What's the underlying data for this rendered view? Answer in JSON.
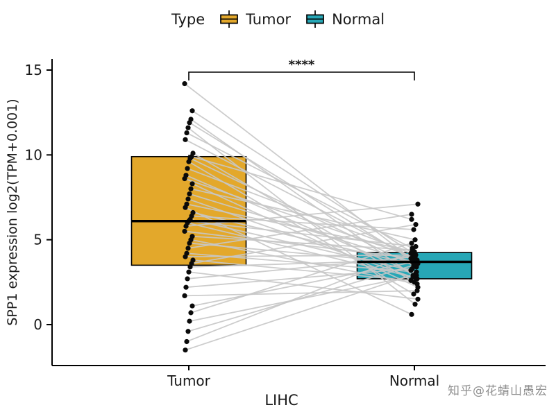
{
  "legend": {
    "title": "Type",
    "items": [
      {
        "label": "Tumor",
        "color": "#E3A82B"
      },
      {
        "label": "Normal",
        "color": "#27A7B6"
      }
    ]
  },
  "watermark": "知乎@花蜻山愚宏",
  "chart_data": {
    "type": "paired-boxplot",
    "title": "",
    "xlabel": "LIHC",
    "ylabel": "SPP1 expression log2(TPM+0.001)",
    "categories": [
      "Tumor",
      "Normal"
    ],
    "yticks": [
      0,
      5,
      10,
      15
    ],
    "ylim": [
      -2.4,
      15.7
    ],
    "legend_position": "top",
    "significance": "****",
    "colors": {
      "Tumor": "#E3A82B",
      "Normal": "#27A7B6"
    },
    "pair_line_color": "#C7C7C7",
    "point_color": "#0a0a0a",
    "box_stats": {
      "Tumor": {
        "whisker_low": 3.4,
        "q1": 3.5,
        "median": 6.1,
        "q3": 9.9,
        "whisker_high": 10.0
      },
      "Normal": {
        "whisker_low": 2.55,
        "q1": 2.7,
        "median": 3.7,
        "q3": 4.25,
        "whisker_high": 4.6
      }
    },
    "pairs": [
      [
        14.2,
        3.9
      ],
      [
        12.6,
        4.1
      ],
      [
        12.1,
        2.9
      ],
      [
        11.9,
        3.6
      ],
      [
        11.6,
        1.2
      ],
      [
        11.3,
        4.5
      ],
      [
        10.9,
        3.8
      ],
      [
        10.1,
        2.5
      ],
      [
        9.9,
        6.2
      ],
      [
        9.8,
        3.4
      ],
      [
        9.6,
        1.8
      ],
      [
        9.2,
        4.2
      ],
      [
        8.8,
        3.0
      ],
      [
        8.6,
        4.0
      ],
      [
        8.3,
        2.2
      ],
      [
        8.0,
        5.0
      ],
      [
        7.7,
        3.7
      ],
      [
        7.4,
        2.7
      ],
      [
        7.1,
        4.3
      ],
      [
        6.9,
        0.6
      ],
      [
        6.6,
        3.5
      ],
      [
        6.4,
        5.6
      ],
      [
        6.2,
        3.2
      ],
      [
        6.1,
        4.6
      ],
      [
        6.0,
        2.8
      ],
      [
        5.8,
        7.1
      ],
      [
        5.5,
        3.9
      ],
      [
        5.2,
        4.4
      ],
      [
        5.0,
        2.4
      ],
      [
        4.8,
        3.6
      ],
      [
        4.5,
        6.5
      ],
      [
        4.2,
        3.1
      ],
      [
        4.0,
        4.1
      ],
      [
        3.8,
        2.6
      ],
      [
        3.6,
        5.9
      ],
      [
        3.4,
        3.8
      ],
      [
        3.1,
        1.5
      ],
      [
        2.7,
        4.0
      ],
      [
        2.2,
        3.3
      ],
      [
        1.7,
        2.0
      ],
      [
        1.1,
        3.7
      ],
      [
        0.7,
        4.8
      ],
      [
        0.2,
        2.9
      ],
      [
        -0.4,
        3.5
      ],
      [
        -1.0,
        4.2
      ],
      [
        -1.5,
        3.0
      ]
    ]
  }
}
